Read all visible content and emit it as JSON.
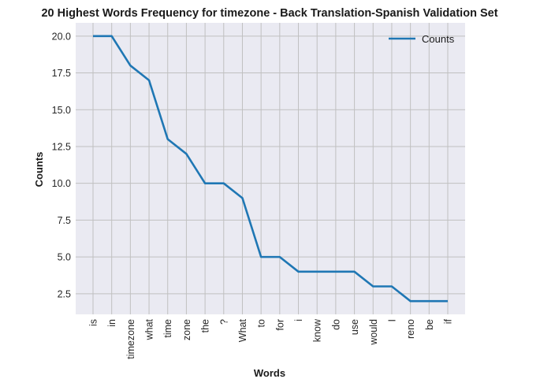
{
  "chart_data": {
    "type": "line",
    "title": "20 Highest Words Frequency for timezone - Back Translation-Spanish Validation Set",
    "xlabel": "Words",
    "ylabel": "Counts",
    "categories": [
      "is",
      "in",
      "timezone",
      "what",
      "time",
      "zone",
      "the",
      "?",
      "What",
      "to",
      "for",
      "i",
      "know",
      "do",
      "use",
      "would",
      "I",
      "reno",
      "be",
      "if"
    ],
    "series": [
      {
        "name": "Counts",
        "values": [
          20,
          20,
          18,
          17,
          13,
          12,
          10,
          10,
          9,
          5,
          5,
          4,
          4,
          4,
          4,
          3,
          3,
          2,
          2,
          2
        ]
      }
    ],
    "yticks": [
      "2.5",
      "5.0",
      "7.5",
      "10.0",
      "12.5",
      "15.0",
      "17.5",
      "20.0"
    ],
    "ylim": [
      1.1,
      20.9
    ],
    "grid": true,
    "legend": "top-right",
    "colors": {
      "line": "#1f77b4",
      "plot_background": "#eaeaf2",
      "grid": "#c0c0c0"
    }
  }
}
